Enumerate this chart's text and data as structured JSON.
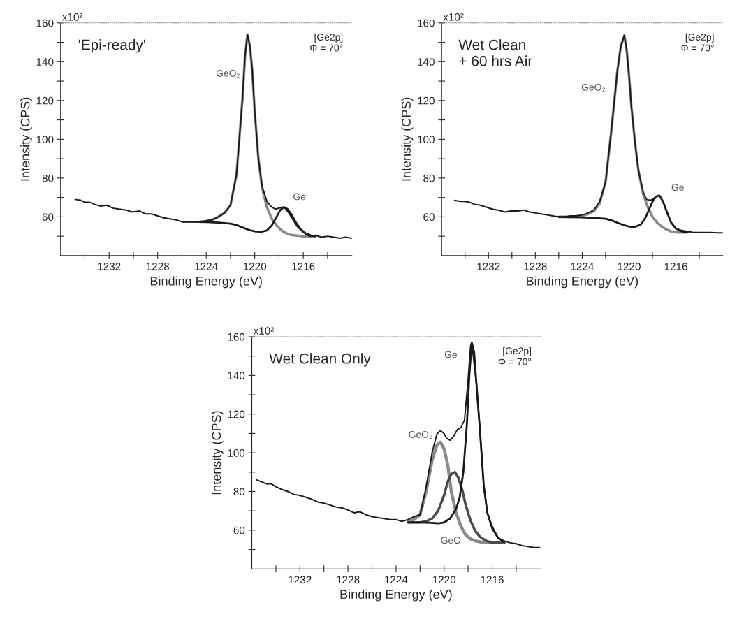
{
  "chart_data": [
    {
      "type": "line",
      "xlabel": "Binding Energy (eV)",
      "ylabel": "Intensity (CPS)",
      "xlim": [
        1236,
        1212
      ],
      "ylim": [
        40,
        160
      ],
      "grid": false,
      "legend": false,
      "marker": "none",
      "line_style": "solid",
      "xticks": [
        {
          "value": 1234,
          "label": null
        },
        1232,
        {
          "value": 1230,
          "label": null
        },
        1228,
        {
          "value": 1226,
          "label": null
        },
        1224,
        {
          "value": 1222,
          "label": null
        },
        1220,
        {
          "value": 1218,
          "label": null
        },
        1216,
        {
          "value": 1214,
          "label": null
        }
      ],
      "yticks": [
        {
          "value": 50,
          "label": null
        },
        60,
        {
          "value": 70,
          "label": null
        },
        80,
        {
          "value": 90,
          "label": null
        },
        100,
        {
          "value": 110,
          "label": null
        },
        120,
        {
          "value": 130,
          "label": null
        },
        140,
        {
          "value": 150,
          "label": null
        },
        160
      ],
      "annotations": [
        "'Epi-ready'",
        "[Ge2p]\nΦ = 70°",
        "x10²",
        "GeO₂",
        "Ge"
      ],
      "series": [
        {
          "color": "#8a8a8a",
          "x": [
            1224.5,
            1224,
            1223.5,
            1223,
            1222.5,
            1222,
            1221.5,
            1221,
            1220.8,
            1220.6,
            1220.4,
            1220.2,
            1220,
            1219.7,
            1219.4,
            1219,
            1218.6,
            1218.2,
            1217.8,
            1217.4,
            1217,
            1216.5,
            1216,
            1215.5,
            1215
          ],
          "values": [
            57.5,
            57.8,
            58.5,
            60,
            62,
            66,
            82,
            122,
            143,
            154,
            148,
            135,
            114,
            90,
            75,
            65,
            59,
            55.5,
            53,
            51.5,
            50.7,
            50.3,
            50,
            50,
            50
          ]
        },
        {
          "color": "#1a1a1a",
          "x": [
            1226,
            1225,
            1224,
            1223,
            1222.5,
            1222,
            1221.5,
            1221,
            1220.5,
            1220,
            1219.5,
            1219,
            1218.6,
            1218.2,
            1217.9,
            1217.6,
            1217.3,
            1217,
            1216.6,
            1216.2,
            1215.8,
            1215.4,
            1215
          ],
          "values": [
            57.5,
            57.5,
            57.3,
            57,
            56.8,
            56.5,
            55.8,
            54.5,
            53.3,
            52.5,
            52.3,
            53,
            55.5,
            60,
            63.5,
            65,
            64,
            61.5,
            57,
            53.5,
            51.5,
            50.5,
            50
          ]
        },
        {
          "color": "#1a1a1a",
          "x": [
            1234.8,
            1234.3,
            1234,
            1233.6,
            1233.2,
            1232.7,
            1232.2,
            1231.7,
            1231.2,
            1230.6,
            1230.1,
            1229.5,
            1229,
            1228.5,
            1228,
            1227.5,
            1227,
            1226.5,
            1226,
            1225.5,
            1225,
            1224.5,
            1224,
            1223.5,
            1223,
            1222.5,
            1222,
            1221.5,
            1221,
            1220.8,
            1220.6,
            1220.4,
            1220.2,
            1220,
            1219.7,
            1219.4,
            1219,
            1218.6,
            1218.3,
            1218,
            1217.7,
            1217.5,
            1217.2,
            1216.9,
            1216.5,
            1216,
            1215.5,
            1215,
            1214.5,
            1214,
            1213.5,
            1213,
            1212.5,
            1212
          ],
          "values": [
            69,
            68.5,
            67.5,
            67.5,
            66.5,
            65.5,
            66,
            64.5,
            64,
            63.5,
            62.5,
            63,
            61.5,
            61.5,
            60.5,
            59.5,
            59,
            58.5,
            57.5,
            57.5,
            57.5,
            57.5,
            58,
            58.5,
            60,
            62,
            66,
            82,
            122,
            143,
            154,
            148,
            135,
            114,
            90,
            76,
            68,
            65,
            64,
            64.5,
            65,
            64.5,
            62,
            59,
            55,
            52,
            50,
            50.5,
            49.5,
            50,
            49.5,
            49,
            49.5,
            49
          ]
        }
      ]
    },
    {
      "type": "line",
      "xlabel": "Binding Energy (eV)",
      "ylabel": "Intensity (CPS)",
      "xlim": [
        1236,
        1212
      ],
      "ylim": [
        40,
        160
      ],
      "grid": false,
      "legend": false,
      "marker": "none",
      "line_style": "solid",
      "xticks": [
        {
          "value": 1234,
          "label": null
        },
        1232,
        {
          "value": 1230,
          "label": null
        },
        1228,
        {
          "value": 1226,
          "label": null
        },
        1224,
        {
          "value": 1222,
          "label": null
        },
        1220,
        {
          "value": 1218,
          "label": null
        },
        1216,
        {
          "value": 1214,
          "label": null
        }
      ],
      "yticks": [
        {
          "value": 50,
          "label": null
        },
        60,
        {
          "value": 70,
          "label": null
        },
        80,
        {
          "value": 90,
          "label": null
        },
        100,
        {
          "value": 110,
          "label": null
        },
        120,
        {
          "value": 130,
          "label": null
        },
        140,
        {
          "value": 150,
          "label": null
        },
        160
      ],
      "annotations": [
        "Wet Clean\n+ 60 hrs Air",
        "[Ge2p]\nΦ = 70°",
        "x10²",
        "GeO₂",
        "Ge"
      ],
      "series": [
        {
          "color": "#8a8a8a",
          "x": [
            1226,
            1225,
            1224,
            1223.5,
            1223,
            1222.5,
            1222,
            1221.5,
            1221,
            1220.7,
            1220.4,
            1220.2,
            1220,
            1219.8,
            1219.5,
            1219.2,
            1218.8,
            1218.4,
            1218,
            1217.6,
            1217.2,
            1216.8,
            1216.4,
            1216,
            1215.5,
            1215
          ],
          "values": [
            60,
            60,
            60.5,
            61.5,
            63,
            67,
            78,
            105,
            135,
            148,
            153.5,
            146,
            133,
            117,
            99,
            84,
            72,
            65,
            60,
            57,
            55,
            53.5,
            52.5,
            52,
            52,
            52
          ]
        },
        {
          "color": "#1a1a1a",
          "x": [
            1226,
            1225,
            1224,
            1223,
            1222,
            1221.5,
            1221,
            1220.5,
            1220,
            1219.5,
            1219,
            1218.6,
            1218.2,
            1217.9,
            1217.6,
            1217.4,
            1217.1,
            1216.8,
            1216.4,
            1216,
            1215.5,
            1215
          ],
          "values": [
            60,
            59.8,
            59.7,
            59.5,
            59,
            58.2,
            57,
            55.8,
            55,
            54.8,
            56,
            59.5,
            65,
            69,
            70.8,
            71,
            68,
            63,
            57,
            54,
            52.5,
            52
          ]
        },
        {
          "color": "#1a1a1a",
          "x": [
            1234.9,
            1234.4,
            1234,
            1233.6,
            1233.2,
            1232.7,
            1232.2,
            1231.7,
            1231.2,
            1230.6,
            1230.1,
            1229.5,
            1229,
            1228.5,
            1228,
            1227.5,
            1227,
            1226.5,
            1226,
            1225.5,
            1225,
            1224.5,
            1224,
            1223.5,
            1223,
            1222.5,
            1222,
            1221.5,
            1221,
            1220.7,
            1220.4,
            1220.2,
            1220,
            1219.8,
            1219.5,
            1219.2,
            1218.8,
            1218.5,
            1218.2,
            1218,
            1217.7,
            1217.4,
            1217.1,
            1216.8,
            1216.4,
            1216,
            1215.5,
            1215,
            1214.5,
            1214,
            1213.5,
            1213,
            1212.5,
            1212
          ],
          "values": [
            68.5,
            68,
            68,
            67.5,
            66.5,
            66,
            65,
            64,
            63.5,
            62.5,
            63,
            63,
            63.5,
            62.5,
            62,
            61.5,
            61,
            60.5,
            60,
            60,
            60.5,
            60.5,
            61,
            62,
            63.5,
            68,
            78,
            105,
            135,
            148,
            153.5,
            146,
            133,
            117,
            99,
            84,
            73,
            69,
            68.5,
            69,
            70.5,
            71,
            68,
            63,
            57,
            54,
            53,
            52.5,
            52,
            52,
            52,
            52,
            51.8,
            51.8
          ]
        }
      ]
    },
    {
      "type": "line",
      "xlabel": "Binding Energy (eV)",
      "ylabel": "Intensity (CPS)",
      "xlim": [
        1236,
        1212
      ],
      "ylim": [
        40,
        160
      ],
      "grid": false,
      "legend": false,
      "marker": "none",
      "line_style": "solid",
      "xticks": [
        {
          "value": 1234,
          "label": null
        },
        1232,
        {
          "value": 1230,
          "label": null
        },
        1228,
        {
          "value": 1226,
          "label": null
        },
        1224,
        {
          "value": 1222,
          "label": null
        },
        1220,
        {
          "value": 1218,
          "label": null
        },
        1216,
        {
          "value": 1214,
          "label": null
        }
      ],
      "yticks": [
        {
          "value": 50,
          "label": null
        },
        60,
        {
          "value": 70,
          "label": null
        },
        80,
        {
          "value": 90,
          "label": null
        },
        100,
        {
          "value": 110,
          "label": null
        },
        120,
        {
          "value": 130,
          "label": null
        },
        140,
        {
          "value": 150,
          "label": null
        },
        160
      ],
      "annotations": [
        "Wet Clean Only",
        "[Ge2p]\nΦ = 70°",
        "x10²",
        "GeO₂",
        "Ge",
        "GeO"
      ],
      "series": [
        {
          "color": "#8a8a8a",
          "x": [
            1223,
            1222.5,
            1222,
            1221.5,
            1221,
            1220.6,
            1220.3,
            1220,
            1219.7,
            1219.4,
            1219,
            1218.6,
            1218.2,
            1217.8,
            1217.4,
            1217,
            1216.5,
            1216,
            1215.5,
            1215
          ],
          "values": [
            64.5,
            65.5,
            68,
            80,
            96,
            104,
            105.5,
            102,
            94,
            80,
            69,
            62,
            57.5,
            55.5,
            54.5,
            54,
            53.5,
            53.5,
            53.5,
            53.5
          ]
        },
        {
          "color": "#4a4a4a",
          "x": [
            1223,
            1222,
            1221.5,
            1221,
            1220.5,
            1220,
            1219.7,
            1219.4,
            1219.1,
            1218.8,
            1218.5,
            1218.2,
            1217.8,
            1217.4,
            1217,
            1216.5,
            1216,
            1215.5,
            1215
          ],
          "values": [
            64,
            64,
            64.5,
            66,
            70,
            78,
            85,
            89,
            90,
            87,
            81,
            73,
            65,
            59.5,
            56.5,
            54.5,
            53.5,
            53.5,
            53.5
          ]
        },
        {
          "color": "#1a1a1a",
          "x": [
            1223,
            1222,
            1221,
            1220.5,
            1220,
            1219.5,
            1219,
            1218.7,
            1218.4,
            1218.1,
            1217.9,
            1217.7,
            1217.5,
            1217.3,
            1217,
            1216.7,
            1216.4,
            1216,
            1215.5,
            1215
          ],
          "values": [
            64,
            64,
            63.8,
            63.5,
            64,
            66,
            71,
            77,
            90,
            115,
            140,
            157,
            152,
            135,
            110,
            83,
            69,
            61,
            56,
            54
          ]
        },
        {
          "color": "#1a1a1a",
          "x": [
            1235.6,
            1235.2,
            1234.8,
            1234.4,
            1234,
            1233.5,
            1233,
            1232.5,
            1232,
            1231.5,
            1231,
            1230.5,
            1230,
            1229.5,
            1229,
            1228.5,
            1228,
            1227.5,
            1227,
            1226.5,
            1226,
            1225.5,
            1225,
            1224.5,
            1224,
            1223.5,
            1223,
            1222.5,
            1222,
            1221.5,
            1221,
            1220.6,
            1220.3,
            1220,
            1219.8,
            1219.5,
            1219.2,
            1218.9,
            1218.6,
            1218.3,
            1218,
            1217.8,
            1217.7,
            1217.3,
            1217,
            1216.7,
            1216.4,
            1216,
            1215.5,
            1215,
            1214.5,
            1214,
            1213.5,
            1213,
            1212.5,
            1212
          ],
          "values": [
            86,
            85,
            84,
            84,
            82.5,
            81,
            80,
            78.5,
            78,
            77,
            76,
            74.5,
            74,
            73,
            72,
            71.5,
            70.5,
            69,
            69.5,
            68,
            67,
            66.5,
            66,
            65.5,
            65.5,
            64.5,
            65.5,
            67,
            68,
            82,
            100,
            109.7,
            111.5,
            110,
            107.5,
            106.5,
            108.5,
            112,
            113,
            117,
            138,
            155,
            157,
            135,
            111,
            83,
            69,
            62,
            56,
            54.5,
            53.5,
            53,
            52,
            51.5,
            51,
            51
          ]
        }
      ]
    }
  ]
}
